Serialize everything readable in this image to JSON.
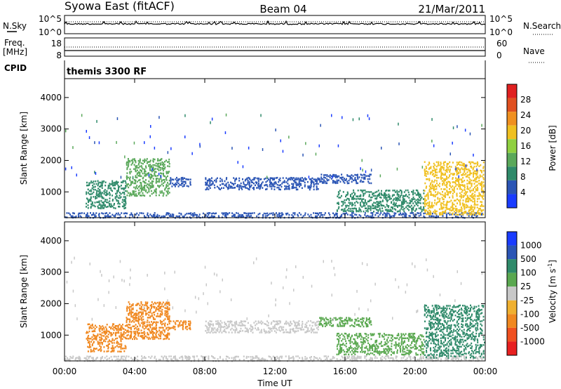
{
  "header": {
    "station": "Syowa East (fitACF)",
    "beam": "Beam 04",
    "date": "21/Mar/2011"
  },
  "noise_panel": {
    "left_label": "N.Sky",
    "left_ticks": [
      "10^5",
      "10^0"
    ],
    "right_label": "N.Search",
    "right_ticks": [
      "10^5",
      "10^0"
    ]
  },
  "freq_panel": {
    "left_label_1": "Freq.",
    "left_label_2": "[MHz]",
    "left_ticks": [
      "18",
      "8"
    ],
    "right_label": "Nave",
    "right_ticks": [
      "60",
      "0"
    ]
  },
  "cpid_panel": {
    "label": "CPID",
    "text": "themis 3300 RF"
  },
  "colors": {
    "power": [
      "#1a3cff",
      "#2b55b5",
      "#2f8a6a",
      "#5aa85a",
      "#8fd040",
      "#f0c020",
      "#f09020",
      "#e05020",
      "#e02020"
    ],
    "velocity": [
      "#e82020",
      "#f05020",
      "#f08820",
      "#f0b030",
      "#c8c8c8",
      "#5aa850",
      "#2f8a6a",
      "#2b55b5",
      "#1a3cff"
    ]
  },
  "chart_data": [
    {
      "type": "heatmap",
      "name": "Power",
      "ylabel": "Slant Range [km]",
      "yticks": [
        "4000",
        "3000",
        "2000",
        "1000"
      ],
      "ylim": [
        180,
        4600
      ],
      "xlim": [
        "00:00",
        "24:00"
      ],
      "colorbar": {
        "label": "Power [dB]",
        "ticks": [
          "28",
          "24",
          "20",
          "16",
          "12",
          "8",
          "4"
        ],
        "range": [
          0,
          32
        ]
      },
      "regions": [
        {
          "t0": 0.0,
          "t1": 24.0,
          "r0": 200,
          "r1": 380,
          "v": 5
        },
        {
          "t0": 1.2,
          "t1": 3.5,
          "r0": 500,
          "r1": 1400,
          "v": 8
        },
        {
          "t0": 3.5,
          "t1": 6.0,
          "r0": 900,
          "r1": 2100,
          "v": 12
        },
        {
          "t0": 6.0,
          "t1": 7.2,
          "r0": 1200,
          "r1": 1500,
          "v": 6
        },
        {
          "t0": 8.0,
          "t1": 14.5,
          "r0": 1100,
          "r1": 1500,
          "v": 5
        },
        {
          "t0": 14.5,
          "t1": 17.5,
          "r0": 1300,
          "r1": 1600,
          "v": 7
        },
        {
          "t0": 15.5,
          "t1": 20.5,
          "r0": 400,
          "r1": 1100,
          "v": 11
        },
        {
          "t0": 20.5,
          "t1": 24.0,
          "r0": 300,
          "r1": 2000,
          "v": 20
        }
      ]
    },
    {
      "type": "heatmap",
      "name": "Velocity",
      "ylabel": "Slant Range [km]",
      "yticks": [
        "4000",
        "3000",
        "2000",
        "1000"
      ],
      "ylim": [
        180,
        4600
      ],
      "xlabel": "Time UT",
      "xticks": [
        "00:00",
        "04:00",
        "08:00",
        "12:00",
        "16:00",
        "20:00",
        "00:00"
      ],
      "colorbar": {
        "label": "Velocity [m s",
        "label_sup": "-1",
        "ticks": [
          "1000",
          "500",
          "100",
          "25",
          "-25",
          "-100",
          "-500",
          "-1000"
        ]
      },
      "regions": [
        {
          "t0": 0.0,
          "t1": 24.0,
          "r0": 200,
          "r1": 380,
          "v": "ground"
        },
        {
          "t0": 1.2,
          "t1": 3.5,
          "r0": 500,
          "r1": 1400,
          "v": -200
        },
        {
          "t0": 3.5,
          "t1": 6.0,
          "r0": 900,
          "r1": 2100,
          "v": -150
        },
        {
          "t0": 6.0,
          "t1": 7.2,
          "r0": 1200,
          "r1": 1500,
          "v": -120
        },
        {
          "t0": 8.0,
          "t1": 14.5,
          "r0": 1100,
          "r1": 1500,
          "v": 0
        },
        {
          "t0": 14.5,
          "t1": 17.5,
          "r0": 1300,
          "r1": 1600,
          "v": 60
        },
        {
          "t0": 15.5,
          "t1": 20.5,
          "r0": 400,
          "r1": 1100,
          "v": 80
        },
        {
          "t0": 20.5,
          "t1": 24.0,
          "r0": 300,
          "r1": 2000,
          "v": 150
        }
      ]
    }
  ]
}
